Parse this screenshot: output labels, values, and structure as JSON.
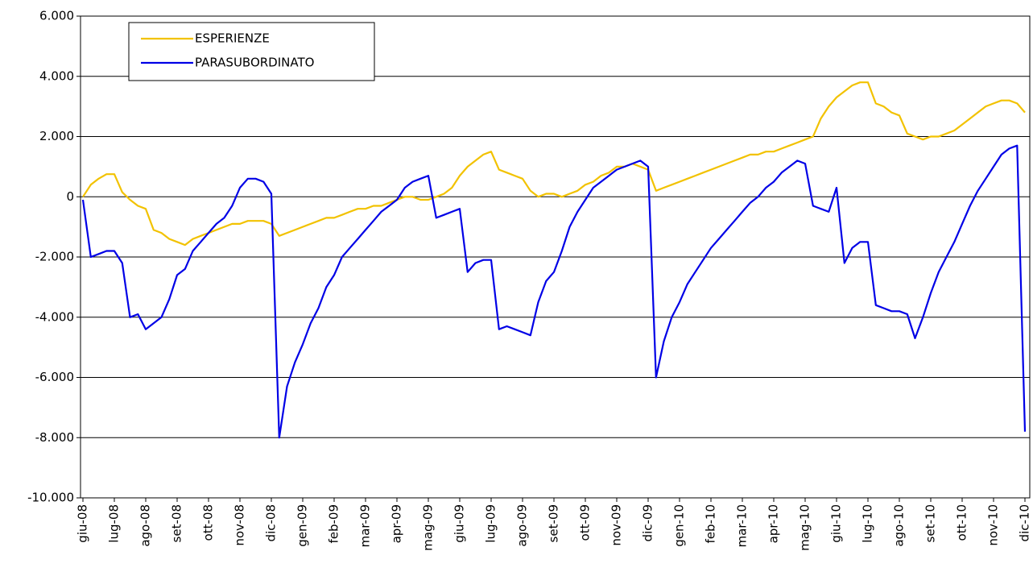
{
  "chart_data": {
    "type": "line",
    "categories": [
      "giu-08",
      null,
      null,
      null,
      "lug-08",
      null,
      null,
      null,
      "ago-08",
      null,
      null,
      null,
      "set-08",
      null,
      null,
      null,
      "ott-08",
      null,
      null,
      null,
      "nov-08",
      null,
      null,
      null,
      "dic-08",
      null,
      null,
      null,
      "gen-09",
      null,
      null,
      null,
      "feb-09",
      null,
      null,
      null,
      "mar-09",
      null,
      null,
      null,
      "apr-09",
      null,
      null,
      null,
      "mag-09",
      null,
      null,
      null,
      "giu-09",
      null,
      null,
      null,
      "lug-09",
      null,
      null,
      null,
      "ago-09",
      null,
      null,
      null,
      "set-09",
      null,
      null,
      null,
      "ott-09",
      null,
      null,
      null,
      "nov-09",
      null,
      null,
      null,
      "dic-09",
      null,
      null,
      null,
      "gen-10",
      null,
      null,
      null,
      "feb-10",
      null,
      null,
      null,
      "mar-10",
      null,
      null,
      null,
      "apr-10",
      null,
      null,
      null,
      "mag-10",
      null,
      null,
      null,
      "giu-10",
      null,
      null,
      null,
      "lug-10",
      null,
      null,
      null,
      "ago-10",
      null,
      null,
      null,
      "set-10",
      null,
      null,
      null,
      "ott-10",
      null,
      null,
      null,
      "nov-10",
      null,
      null,
      null,
      "dic-10"
    ],
    "series": [
      {
        "name": "ESPERIENZE",
        "color": "#f2c200",
        "values": [
          0,
          400,
          600,
          750,
          750,
          150,
          -100,
          -300,
          -400,
          -1100,
          -1200,
          -1400,
          -1500,
          -1600,
          -1400,
          -1300,
          -1200,
          -1100,
          -1000,
          -900,
          -900,
          -800,
          -800,
          -800,
          -900,
          -1300,
          -1200,
          -1100,
          -1000,
          -900,
          -800,
          -700,
          -700,
          -600,
          -500,
          -400,
          -400,
          -300,
          -300,
          -200,
          -100,
          0,
          0,
          -100,
          -100,
          0,
          100,
          300,
          700,
          1000,
          1200,
          1400,
          1500,
          900,
          800,
          700,
          600,
          200,
          0,
          100,
          100,
          0,
          100,
          200,
          400,
          500,
          700,
          800,
          1000,
          1000,
          1100,
          1000,
          900,
          200,
          300,
          400,
          500,
          600,
          700,
          800,
          900,
          1000,
          1100,
          1200,
          1300,
          1400,
          1400,
          1500,
          1500,
          1600,
          1700,
          1800,
          1900,
          2000,
          2600,
          3000,
          3300,
          3500,
          3700,
          3800,
          3800,
          3100,
          3000,
          2800,
          2700,
          2100,
          2000,
          1900,
          2000,
          2000,
          2100,
          2200,
          2400,
          2600,
          2800,
          3000,
          3100,
          3200,
          3200,
          3100,
          2800
        ]
      },
      {
        "name": "PARASUBORDINATO",
        "color": "#0000e6",
        "values": [
          -100,
          -2000,
          -1900,
          -1800,
          -1800,
          -2200,
          -4000,
          -3900,
          -4400,
          -4200,
          -4000,
          -3400,
          -2600,
          -2400,
          -1800,
          -1500,
          -1200,
          -900,
          -700,
          -300,
          300,
          600,
          600,
          500,
          100,
          -8000,
          -6300,
          -5500,
          -4900,
          -4200,
          -3700,
          -3000,
          -2600,
          -2000,
          -1700,
          -1400,
          -1100,
          -800,
          -500,
          -300,
          -100,
          300,
          500,
          600,
          700,
          -700,
          -600,
          -500,
          -400,
          -2500,
          -2200,
          -2100,
          -2100,
          -4400,
          -4300,
          -4400,
          -4500,
          -4600,
          -3500,
          -2800,
          -2500,
          -1800,
          -1000,
          -500,
          -100,
          300,
          500,
          700,
          900,
          1000,
          1100,
          1200,
          1000,
          -6000,
          -4800,
          -4000,
          -3500,
          -2900,
          -2500,
          -2100,
          -1700,
          -1400,
          -1100,
          -800,
          -500,
          -200,
          0,
          300,
          500,
          800,
          1000,
          1200,
          1100,
          -300,
          -400,
          -500,
          300,
          -2200,
          -1700,
          -1500,
          -1500,
          -3600,
          -3700,
          -3800,
          -3800,
          -3900,
          -4700,
          -4000,
          -3200,
          -2500,
          -2000,
          -1500,
          -900,
          -300,
          200,
          600,
          1000,
          1400,
          1600,
          1700,
          -7800
        ]
      }
    ],
    "ylim": [
      -10000,
      6000
    ],
    "yticks": [
      {
        "value": -10000,
        "label": "-10.000"
      },
      {
        "value": -8000,
        "label": "-8.000"
      },
      {
        "value": -6000,
        "label": "-6.000"
      },
      {
        "value": -4000,
        "label": "-4.000"
      },
      {
        "value": -2000,
        "label": "-2.000"
      },
      0,
      {
        "value": 2000,
        "label": "2.000"
      },
      {
        "value": 4000,
        "label": "4.000"
      },
      {
        "value": 6000,
        "label": "6.000"
      }
    ],
    "grid": true,
    "legend": "upper left"
  }
}
